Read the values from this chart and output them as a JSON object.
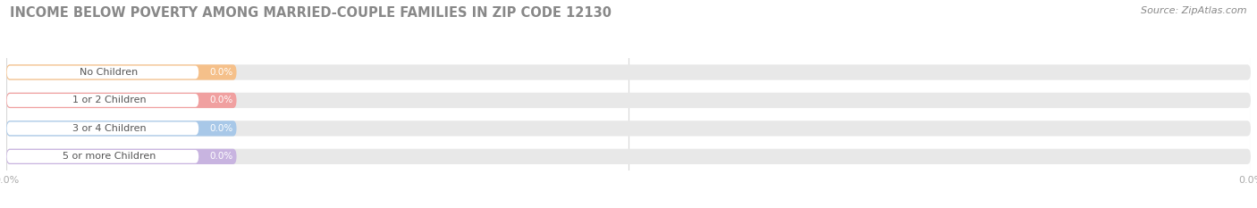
{
  "title": "INCOME BELOW POVERTY AMONG MARRIED-COUPLE FAMILIES IN ZIP CODE 12130",
  "source": "Source: ZipAtlas.com",
  "categories": [
    "No Children",
    "1 or 2 Children",
    "3 or 4 Children",
    "5 or more Children"
  ],
  "values": [
    0.0,
    0.0,
    0.0,
    0.0
  ],
  "bar_colors": [
    "#f5c08a",
    "#f0a0a0",
    "#a8c8e8",
    "#c8b4e0"
  ],
  "bar_bg_color": "#e8e8e8",
  "background_color": "#ffffff",
  "grid_color": "#d8d8d8",
  "tick_label_color": "#aaaaaa",
  "title_color": "#888888",
  "label_color": "#555555",
  "value_label_color": "#ffffff",
  "source_color": "#888888",
  "figsize": [
    14.06,
    2.33
  ],
  "dpi": 100
}
